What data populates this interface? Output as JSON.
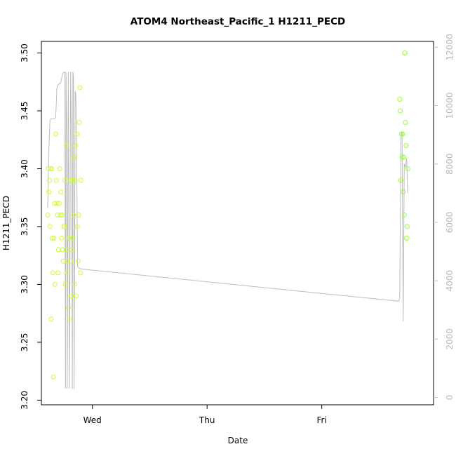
{
  "chart_data": {
    "type": "scatter",
    "title": "ATOM4 Northeast_Pacific_1 H1211_PECD",
    "xlabel": "Date",
    "ylabel": "H1211_PECD",
    "x_ticks": [
      "Wed",
      "Thu",
      "Fri"
    ],
    "y_ticks": [
      "3.20",
      "3.25",
      "3.30",
      "3.35",
      "3.40",
      "3.45",
      "3.50"
    ],
    "y2_ticks": [
      "0",
      "2000",
      "4000",
      "6000",
      "8000",
      "10000",
      "12000"
    ],
    "ylim": [
      3.196,
      3.51
    ],
    "y2lim": [
      -250,
      12200
    ],
    "x_unit": "days, where Wed = 0, Thu = 1, Fri = 2",
    "xlim": [
      -0.445,
      2.975
    ],
    "colors": {
      "points_early": "#ccff33",
      "points_late": "#99ff33",
      "line": "#bdbdbd",
      "right_axis": "#bdbdbd"
    },
    "series": [
      {
        "kind": "points",
        "axis": "left",
        "x": [
          -0.39,
          -0.385,
          -0.38,
          -0.375,
          -0.37,
          -0.365,
          -0.36,
          -0.355,
          -0.35,
          -0.345,
          -0.34,
          -0.335,
          -0.33,
          -0.325,
          -0.32,
          -0.315,
          -0.31,
          -0.305,
          -0.3,
          -0.295,
          -0.29,
          -0.285,
          -0.28,
          -0.275,
          -0.27,
          -0.265,
          -0.26,
          -0.255,
          -0.25,
          -0.245,
          -0.24,
          -0.235,
          -0.23,
          -0.225,
          -0.22,
          -0.215,
          -0.21,
          -0.205,
          -0.2,
          -0.195,
          -0.19,
          -0.185,
          -0.18,
          -0.175,
          -0.17,
          -0.165,
          -0.16,
          -0.155,
          -0.15,
          -0.145,
          -0.14,
          -0.135,
          -0.13,
          -0.125,
          -0.12,
          -0.115,
          -0.11,
          -0.105,
          -0.1,
          2.68,
          2.685,
          2.69,
          2.695,
          2.7,
          2.705,
          2.71,
          2.715,
          2.72,
          2.725,
          2.73,
          2.735,
          2.74,
          2.745,
          2.75
        ],
        "y": [
          3.36,
          3.4,
          3.38,
          3.39,
          3.35,
          3.4,
          3.27,
          3.4,
          3.34,
          3.31,
          3.22,
          3.34,
          3.37,
          3.3,
          3.43,
          3.39,
          3.37,
          3.36,
          3.31,
          3.33,
          3.37,
          3.4,
          3.36,
          3.38,
          3.34,
          3.36,
          3.33,
          3.32,
          3.35,
          3.35,
          3.39,
          3.3,
          3.33,
          3.42,
          3.32,
          3.31,
          3.28,
          3.27,
          3.34,
          3.39,
          3.32,
          3.29,
          3.33,
          3.39,
          3.34,
          3.36,
          3.41,
          3.3,
          3.39,
          3.42,
          3.29,
          3.43,
          3.35,
          3.32,
          3.36,
          3.44,
          3.47,
          3.31,
          3.39,
          3.46,
          3.45,
          3.39,
          3.43,
          3.41,
          3.43,
          3.38,
          3.41,
          3.36,
          3.5,
          3.44,
          3.42,
          3.34,
          3.35,
          3.4
        ]
      },
      {
        "kind": "line",
        "axis": "right",
        "x": [
          -0.39,
          -0.38,
          -0.37,
          -0.36,
          -0.35,
          -0.34,
          -0.33,
          -0.32,
          -0.31,
          -0.305,
          -0.3,
          -0.29,
          -0.28,
          -0.27,
          -0.26,
          -0.25,
          -0.24,
          -0.235,
          -0.23,
          -0.225,
          -0.22,
          -0.21,
          -0.2,
          -0.19,
          -0.18,
          -0.175,
          -0.17,
          -0.165,
          -0.16,
          -0.15,
          -0.145,
          -0.14,
          -0.13,
          -0.12,
          -0.11,
          -0.1,
          2.67,
          2.68,
          2.69,
          2.7,
          2.71,
          2.72,
          2.73,
          2.74,
          2.75
        ],
        "y": [
          6500,
          8500,
          9500,
          9550,
          9550,
          9550,
          9550,
          9600,
          10600,
          10700,
          10700,
          10750,
          10750,
          10900,
          11100,
          11150,
          11150,
          300,
          11150,
          9500,
          300,
          11150,
          300,
          11150,
          7800,
          300,
          11150,
          11000,
          300,
          10500,
          10400,
          9500,
          4500,
          4450,
          4420,
          4400,
          3300,
          3400,
          8900,
          9100,
          2600,
          8000,
          7900,
          8200,
          7000
        ]
      }
    ]
  }
}
